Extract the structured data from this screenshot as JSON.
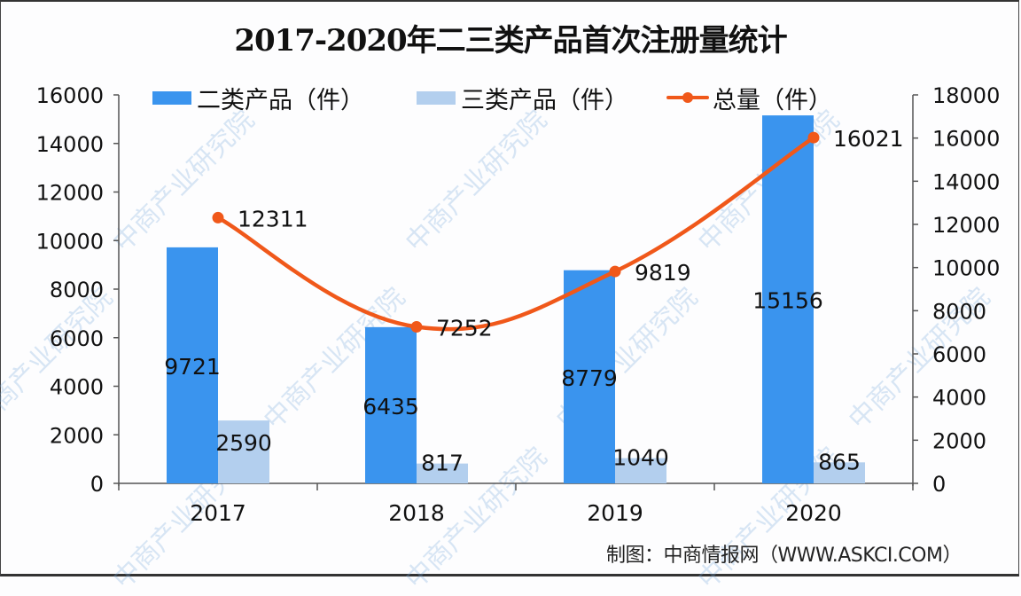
{
  "title": "2017-2020年二三类产品首次注册量统计",
  "legend": [
    {
      "label": "二类产品（件）",
      "type": "bar",
      "color": "#3a94ee"
    },
    {
      "label": "三类产品（件）",
      "type": "bar",
      "color": "#b3cfee"
    },
    {
      "label": "总量（件）",
      "type": "line",
      "color": "#f0581a"
    }
  ],
  "left_axis_ticks": [
    "16000",
    "14000",
    "12000",
    "10000",
    "8000",
    "6000",
    "4000",
    "2000",
    "0"
  ],
  "right_axis_ticks": [
    "18000",
    "16000",
    "14000",
    "12000",
    "10000",
    "8000",
    "6000",
    "4000",
    "2000",
    "0"
  ],
  "categories": [
    "2017",
    "2018",
    "2019",
    "2020"
  ],
  "footer": "制图：中商情报网（WWW.ASKCI.COM）",
  "watermark": "中商产业研究院",
  "chart_data": {
    "type": "bar",
    "title": "2017-2020年二三类产品首次注册量统计",
    "categories": [
      "2017",
      "2018",
      "2019",
      "2020"
    ],
    "series": [
      {
        "name": "二类产品（件）",
        "type": "bar",
        "axis": "left",
        "color": "#3a94ee",
        "values": [
          9721,
          6435,
          8779,
          15156
        ]
      },
      {
        "name": "三类产品（件）",
        "type": "bar",
        "axis": "left",
        "color": "#b3cfee",
        "values": [
          2590,
          817,
          1040,
          865
        ]
      },
      {
        "name": "总量（件）",
        "type": "line",
        "axis": "right",
        "color": "#f0581a",
        "values": [
          12311,
          7252,
          9819,
          16021
        ]
      }
    ],
    "xlabel": "",
    "ylabel": "",
    "ylim": [
      0,
      16000
    ],
    "y2lim": [
      0,
      18000
    ],
    "grid": false,
    "legend_position": "top"
  }
}
